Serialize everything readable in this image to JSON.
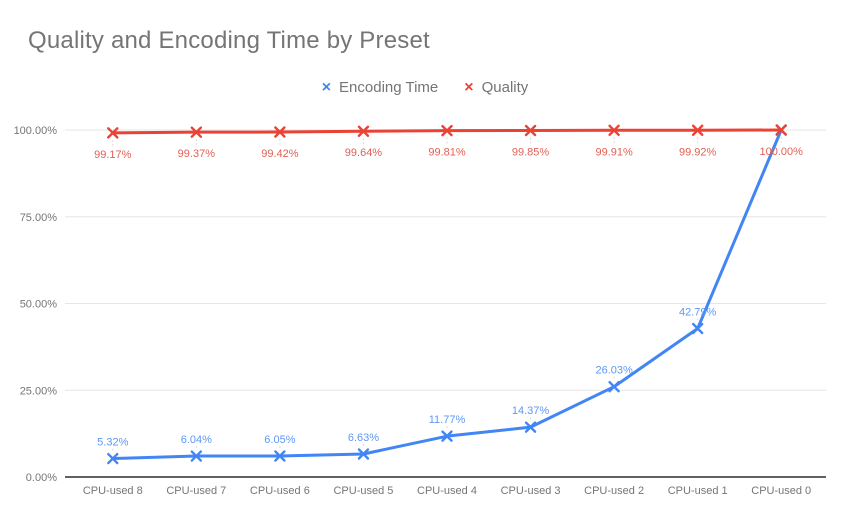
{
  "title": "Quality and Encoding Time by Preset",
  "colors": {
    "background": "#FFFFFF",
    "title_text": "#757575",
    "legend_text": "#757575",
    "axis_text": "#757575",
    "gridline": "#E6E6E6",
    "axis_line": "#616161",
    "leader_line": "#DADADA",
    "encoding_time_series": "#4285F4",
    "quality_series": "#EA4335"
  },
  "chart_data": {
    "type": "line",
    "title": "Quality and Encoding Time by Preset",
    "categories": [
      "CPU-used 8",
      "CPU-used 7",
      "CPU-used 6",
      "CPU-used 5",
      "CPU-used 4",
      "CPU-used 3",
      "CPU-used 2",
      "CPU-used 1",
      "CPU-used 0"
    ],
    "series": [
      {
        "name": "Encoding Time",
        "color": "#4285F4",
        "label_color": "#5E97F6",
        "marker": "x",
        "label_position": "above",
        "values": [
          5.32,
          6.04,
          6.05,
          6.63,
          11.77,
          14.37,
          26.03,
          42.79,
          100.0
        ],
        "labels": [
          "5.32%",
          "6.04%",
          "6.05%",
          "6.63%",
          "11.77%",
          "14.37%",
          "26.03%",
          "42.79%",
          ""
        ]
      },
      {
        "name": "Quality",
        "color": "#EA4335",
        "label_color": "#E06055",
        "marker": "x",
        "label_position": "below",
        "values": [
          99.17,
          99.37,
          99.42,
          99.64,
          99.81,
          99.85,
          99.91,
          99.92,
          100.0
        ],
        "labels": [
          "99.17%",
          "99.37%",
          "99.42%",
          "99.64%",
          "99.81%",
          "99.85%",
          "99.91%",
          "99.92%",
          "100.00%"
        ]
      }
    ],
    "xlabel": "",
    "ylabel": "",
    "ylim": [
      0,
      100
    ],
    "yticks": [
      {
        "value": 0,
        "label": "0.00%"
      },
      {
        "value": 25,
        "label": "25.00%"
      },
      {
        "value": 50,
        "label": "50.00%"
      },
      {
        "value": 75,
        "label": "75.00%"
      },
      {
        "value": 100,
        "label": "100.00%"
      }
    ],
    "grid": true,
    "legend_position": "top"
  }
}
